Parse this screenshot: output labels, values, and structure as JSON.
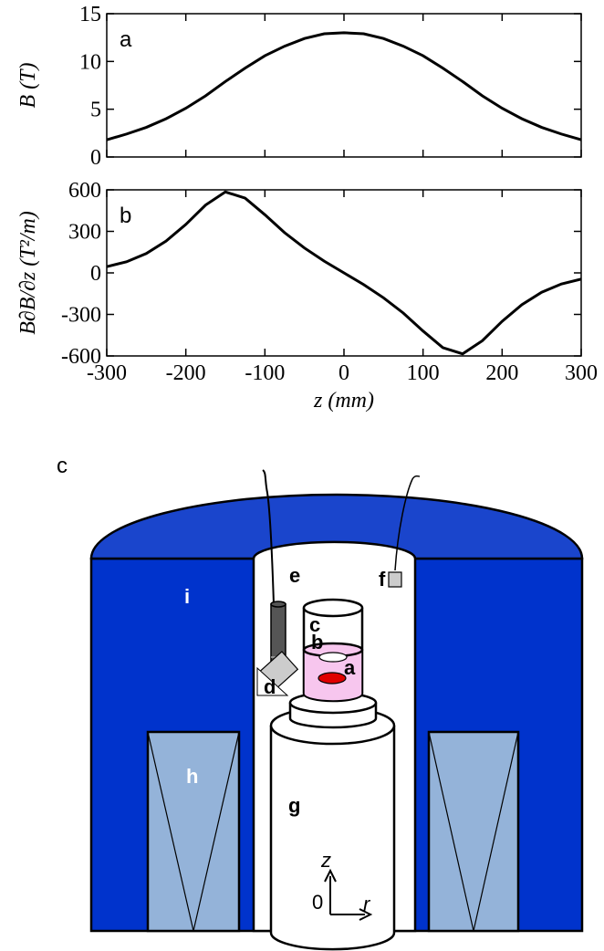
{
  "chart_data": [
    {
      "type": "line",
      "panel_label": "a",
      "ylabel": "B (T)",
      "color": "#000000",
      "x": [
        -300,
        -275,
        -250,
        -225,
        -200,
        -175,
        -150,
        -125,
        -100,
        -75,
        -50,
        -25,
        0,
        25,
        50,
        75,
        100,
        125,
        150,
        175,
        200,
        225,
        250,
        275,
        300
      ],
      "values": [
        1.8,
        2.4,
        3.1,
        4.0,
        5.1,
        6.4,
        7.9,
        9.3,
        10.6,
        11.6,
        12.4,
        12.9,
        13.0,
        12.9,
        12.4,
        11.6,
        10.6,
        9.3,
        7.9,
        6.4,
        5.1,
        4.0,
        3.1,
        2.4,
        1.8
      ],
      "xlim": [
        -300,
        300
      ],
      "ylim": [
        0,
        15
      ],
      "yticks": [
        0,
        5,
        10,
        15
      ]
    },
    {
      "type": "line",
      "panel_label": "b",
      "ylabel": "B∂B/∂z (T²/m)",
      "xlabel": "z (mm)",
      "color": "#000000",
      "x": [
        -300,
        -275,
        -250,
        -225,
        -200,
        -175,
        -150,
        -125,
        -100,
        -75,
        -50,
        -25,
        0,
        25,
        50,
        75,
        100,
        125,
        150,
        175,
        200,
        225,
        250,
        275,
        300
      ],
      "values": [
        45,
        80,
        140,
        230,
        350,
        490,
        585,
        540,
        420,
        290,
        180,
        85,
        0,
        -85,
        -180,
        -290,
        -420,
        -540,
        -585,
        -490,
        -350,
        -230,
        -140,
        -80,
        -45
      ],
      "xlim": [
        -300,
        300
      ],
      "xticks": [
        -300,
        -200,
        -100,
        0,
        100,
        200,
        300
      ],
      "ylim": [
        -600,
        600
      ],
      "yticks": [
        -600,
        -300,
        0,
        300,
        600
      ]
    }
  ],
  "diagram": {
    "panel_label": "c",
    "labels": [
      "a",
      "b",
      "c",
      "d",
      "e",
      "f",
      "g",
      "h",
      "i"
    ],
    "axis_z": "z",
    "axis_origin": "0",
    "axis_r": "r"
  }
}
